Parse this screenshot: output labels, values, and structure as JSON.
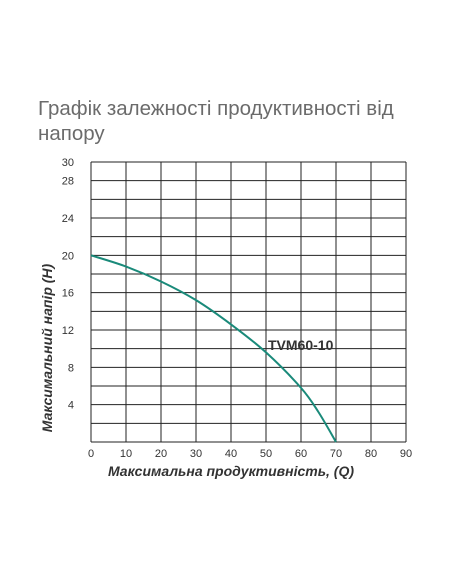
{
  "chart_data": {
    "type": "line",
    "title": "Графік залежності продуктивності від напору",
    "xlabel": "Максимальна продуктивність, (Q)",
    "ylabel": "Максимальний напір (Н)",
    "xlim": [
      0,
      90
    ],
    "ylim": [
      0,
      30
    ],
    "x_ticks": [
      0,
      10,
      20,
      30,
      40,
      50,
      60,
      70,
      80,
      90
    ],
    "y_ticks": [
      4,
      8,
      12,
      16,
      20,
      24,
      28,
      30
    ],
    "grid": true,
    "series": [
      {
        "name": "TVM60-10",
        "color": "#1a8a7a",
        "x": [
          0,
          10,
          20,
          30,
          40,
          50,
          60,
          65,
          70
        ],
        "y": [
          20,
          18.8,
          17.2,
          15.2,
          12.6,
          9.6,
          5.8,
          3.2,
          0
        ]
      }
    ]
  }
}
